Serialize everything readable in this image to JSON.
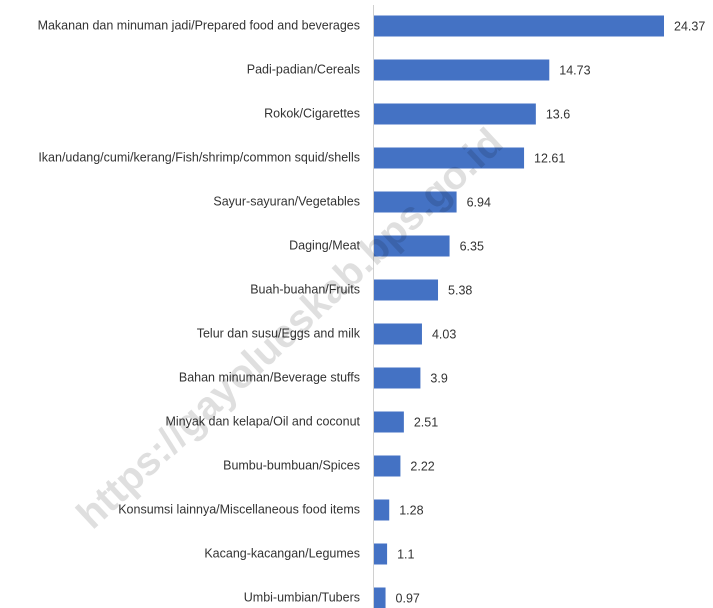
{
  "chart_data": {
    "type": "barh",
    "categories": [
      "Makanan dan minuman jadi/Prepared food and beverages",
      "Padi-padian/Cereals",
      "Rokok/Cigarettes",
      "Ikan/udang/cumi/kerang/Fish/shrimp/common squid/shells",
      "Sayur-sayuran/Vegetables",
      "Daging/Meat",
      "Buah-buahan/Fruits",
      "Telur dan susu/Eggs and milk",
      "Bahan minuman/Beverage stuffs",
      "Minyak dan kelapa/Oil and coconut",
      "Bumbu-bumbuan/Spices",
      "Konsumsi lainnya/Miscellaneous food items",
      "Kacang-kacangan/Legumes",
      "Umbi-umbian/Tubers"
    ],
    "values": [
      24.37,
      14.73,
      13.6,
      12.61,
      6.94,
      6.35,
      5.38,
      4.03,
      3.9,
      2.51,
      2.22,
      1.28,
      1.1,
      0.97
    ],
    "color": "#4472c4",
    "xlim": [
      0,
      25
    ],
    "watermark": "https://gayolueskab.bps.go.id"
  }
}
